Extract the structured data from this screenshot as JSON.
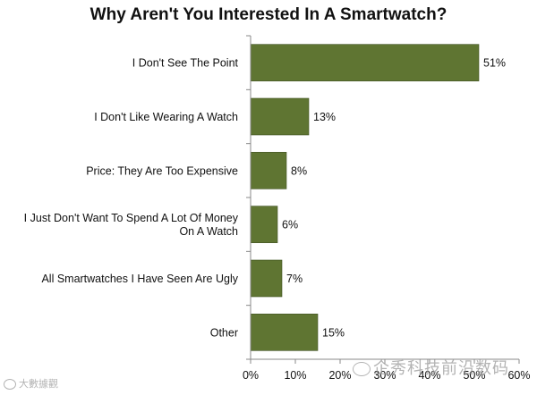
{
  "chart_data": {
    "type": "bar",
    "orientation": "horizontal",
    "title": "Why Aren't You Interested In A Smartwatch?",
    "categories": [
      "I Don't See The Point",
      "I Don't Like Wearing A Watch",
      "Price: They Are Too Expensive",
      "I Just Don't Want To Spend A Lot Of Money On A Watch",
      "All Smartwatches I Have Seen Are Ugly",
      "Other"
    ],
    "category_lines": [
      [
        "I Don't See The Point"
      ],
      [
        "I Don't Like Wearing A Watch"
      ],
      [
        "Price: They Are Too Expensive"
      ],
      [
        "I Just Don't Want To Spend A Lot Of Money",
        "On A Watch"
      ],
      [
        "All Smartwatches I Have Seen Are Ugly"
      ],
      [
        "Other"
      ]
    ],
    "values": [
      51,
      13,
      8,
      6,
      7,
      15
    ],
    "value_labels": [
      "51%",
      "13%",
      "8%",
      "6%",
      "7%",
      "15%"
    ],
    "xlim": [
      0,
      60
    ],
    "x_ticks": [
      0,
      10,
      20,
      30,
      40,
      50,
      60
    ],
    "x_tick_labels": [
      "0%",
      "10%",
      "20%",
      "30%",
      "40%",
      "50%",
      "60%"
    ],
    "grid": false,
    "bar_color": "#5f7532",
    "legend": "none"
  },
  "watermarks": {
    "left": "大數據觀",
    "right": "企秀科技前沿数码"
  }
}
